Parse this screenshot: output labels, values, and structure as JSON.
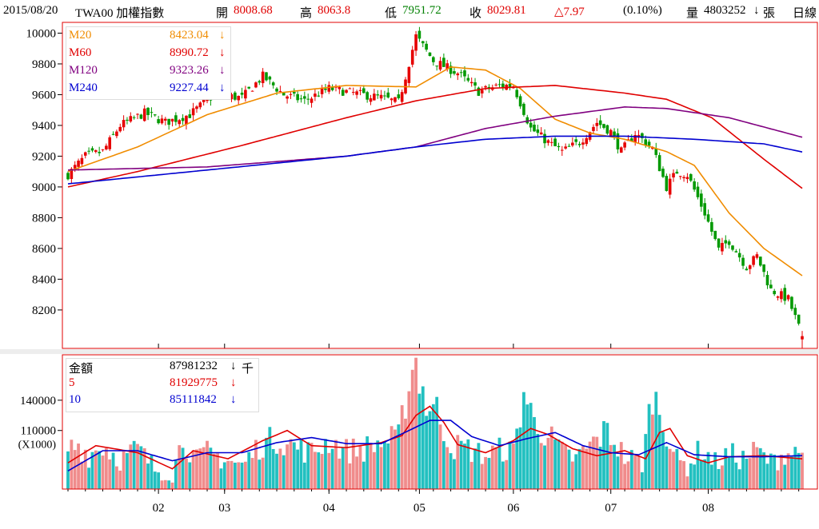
{
  "header": {
    "date": "2015/08/20",
    "symbol": "TWA00 加權指數",
    "open_label": "開",
    "open": "8008.68",
    "high_label": "高",
    "high": "8063.8",
    "low_label": "低",
    "low": "7951.72",
    "close_label": "收",
    "close": "8029.81",
    "change": "△7.97",
    "change_pct": "(0.10%)",
    "volume_label": "量",
    "volume": "4803252",
    "volume_arrow": "↓",
    "volume_unit": "張",
    "period": "日線"
  },
  "colors": {
    "up": "#e60000",
    "down": "#009900",
    "vol_up": "#f08c8c",
    "vol_down": "#22c0c0",
    "ma20": "#f08c00",
    "ma60": "#e00000",
    "ma120": "#800080",
    "ma240": "#0000d0",
    "frame": "#e00000"
  },
  "price_legend": [
    {
      "name": "M20",
      "value": "8423.04",
      "arrow": "↓",
      "color": "#f08c00"
    },
    {
      "name": "M60",
      "value": "8990.72",
      "arrow": "↓",
      "color": "#e00000"
    },
    {
      "name": "M120",
      "value": "9323.26",
      "arrow": "↓",
      "color": "#800080"
    },
    {
      "name": "M240",
      "value": "9227.44",
      "arrow": "↓",
      "color": "#0000d0"
    }
  ],
  "volume_legend": [
    {
      "name": "金額",
      "value": "87981232",
      "arrow": "↓",
      "suffix": "千",
      "color": "#000000"
    },
    {
      "name": "5",
      "value": "81929775",
      "arrow": "↓",
      "suffix": "",
      "color": "#e00000"
    },
    {
      "name": "10",
      "value": "85111842",
      "arrow": "↓",
      "suffix": "",
      "color": "#0000d0"
    }
  ],
  "chart_data": [
    {
      "type": "candlestick",
      "title": "TWA00 加權指數",
      "y_ticks": [
        10000,
        9800,
        9600,
        9400,
        9200,
        9000,
        8800,
        8600,
        8400,
        8200
      ],
      "ylim": [
        7950,
        10070
      ],
      "x_ticks": [
        "02",
        "03",
        "04",
        "05",
        "06",
        "07",
        "08"
      ],
      "x_tick_index": [
        26,
        45,
        75,
        101,
        128,
        156,
        184
      ],
      "keypoints_close": [
        [
          0,
          9080
        ],
        [
          5,
          9200
        ],
        [
          10,
          9230
        ],
        [
          15,
          9400
        ],
        [
          22,
          9480
        ],
        [
          28,
          9420
        ],
        [
          35,
          9470
        ],
        [
          42,
          9600
        ],
        [
          50,
          9580
        ],
        [
          56,
          9720
        ],
        [
          62,
          9600
        ],
        [
          68,
          9560
        ],
        [
          75,
          9640
        ],
        [
          82,
          9610
        ],
        [
          90,
          9580
        ],
        [
          95,
          9550
        ],
        [
          97,
          9720
        ],
        [
          100,
          9980
        ],
        [
          105,
          9820
        ],
        [
          112,
          9740
        ],
        [
          118,
          9620
        ],
        [
          124,
          9660
        ],
        [
          128,
          9660
        ],
        [
          133,
          9380
        ],
        [
          138,
          9290
        ],
        [
          142,
          9230
        ],
        [
          147,
          9290
        ],
        [
          152,
          9420
        ],
        [
          156,
          9360
        ],
        [
          159,
          9230
        ],
        [
          163,
          9350
        ],
        [
          168,
          9250
        ],
        [
          172,
          9000
        ],
        [
          175,
          9100
        ],
        [
          178,
          9080
        ],
        [
          183,
          8830
        ],
        [
          187,
          8590
        ],
        [
          190,
          8650
        ],
        [
          195,
          8480
        ],
        [
          198,
          8550
        ],
        [
          202,
          8330
        ],
        [
          207,
          8270
        ],
        [
          211,
          8030
        ]
      ],
      "series": [
        {
          "name": "M20",
          "values_keypoints": [
            [
              0,
              9100
            ],
            [
              20,
              9260
            ],
            [
              40,
              9470
            ],
            [
              60,
              9610
            ],
            [
              80,
              9660
            ],
            [
              100,
              9650
            ],
            [
              110,
              9780
            ],
            [
              120,
              9760
            ],
            [
              130,
              9640
            ],
            [
              140,
              9440
            ],
            [
              150,
              9350
            ],
            [
              160,
              9310
            ],
            [
              172,
              9230
            ],
            [
              180,
              9140
            ],
            [
              190,
              8830
            ],
            [
              200,
              8600
            ],
            [
              211,
              8423.04
            ]
          ]
        },
        {
          "name": "M60",
          "values_keypoints": [
            [
              0,
              9000
            ],
            [
              20,
              9100
            ],
            [
              50,
              9270
            ],
            [
              80,
              9450
            ],
            [
              100,
              9560
            ],
            [
              120,
              9640
            ],
            [
              140,
              9660
            ],
            [
              160,
              9610
            ],
            [
              172,
              9570
            ],
            [
              185,
              9450
            ],
            [
              200,
              9180
            ],
            [
              211,
              8990.72
            ]
          ]
        },
        {
          "name": "M120",
          "values_keypoints": [
            [
              0,
              9110
            ],
            [
              40,
              9130
            ],
            [
              80,
              9200
            ],
            [
              100,
              9260
            ],
            [
              120,
              9380
            ],
            [
              140,
              9460
            ],
            [
              160,
              9520
            ],
            [
              172,
              9510
            ],
            [
              190,
              9450
            ],
            [
              211,
              9323.26
            ]
          ]
        },
        {
          "name": "M240",
          "values_keypoints": [
            [
              0,
              9020
            ],
            [
              40,
              9110
            ],
            [
              80,
              9200
            ],
            [
              100,
              9260
            ],
            [
              120,
              9310
            ],
            [
              140,
              9330
            ],
            [
              160,
              9330
            ],
            [
              180,
              9310
            ],
            [
              200,
              9280
            ],
            [
              211,
              9227.44
            ]
          ]
        }
      ]
    },
    {
      "type": "bar",
      "title": "金額",
      "unit": "(X1000)",
      "y_ticks": [
        140000,
        110000
      ],
      "ylim": [
        52000,
        185000
      ],
      "x_ticks": [
        "02",
        "03",
        "04",
        "05",
        "06",
        "07",
        "08"
      ],
      "keypoints_volume": [
        [
          0,
          92000
        ],
        [
          3,
          96000
        ],
        [
          6,
          86000
        ],
        [
          10,
          95000
        ],
        [
          15,
          82000
        ],
        [
          20,
          92000
        ],
        [
          25,
          72000
        ],
        [
          30,
          68000
        ],
        [
          33,
          102000
        ],
        [
          37,
          80000
        ],
        [
          40,
          88000
        ],
        [
          45,
          82000
        ],
        [
          50,
          75000
        ],
        [
          55,
          95000
        ],
        [
          60,
          102000
        ],
        [
          65,
          95000
        ],
        [
          70,
          88000
        ],
        [
          75,
          100000
        ],
        [
          80,
          90000
        ],
        [
          85,
          92000
        ],
        [
          90,
          98000
        ],
        [
          95,
          102000
        ],
        [
          98,
          160000
        ],
        [
          100,
          180000
        ],
        [
          103,
          135000
        ],
        [
          106,
          130000
        ],
        [
          110,
          95000
        ],
        [
          115,
          92000
        ],
        [
          120,
          85000
        ],
        [
          125,
          92000
        ],
        [
          128,
          88000
        ],
        [
          131,
          148000
        ],
        [
          134,
          118000
        ],
        [
          138,
          105000
        ],
        [
          142,
          88000
        ],
        [
          146,
          82000
        ],
        [
          150,
          95000
        ],
        [
          155,
          110000
        ],
        [
          160,
          84000
        ],
        [
          165,
          78000
        ],
        [
          168,
          148000
        ],
        [
          171,
          120000
        ],
        [
          175,
          80000
        ],
        [
          178,
          75000
        ],
        [
          182,
          92000
        ],
        [
          186,
          78000
        ],
        [
          190,
          86000
        ],
        [
          194,
          82000
        ],
        [
          198,
          90000
        ],
        [
          202,
          78000
        ],
        [
          206,
          88000
        ],
        [
          211,
          88000
        ]
      ],
      "series": [
        {
          "name": "5",
          "values_keypoints": [
            [
              0,
              78000
            ],
            [
              8,
              95000
            ],
            [
              20,
              88000
            ],
            [
              30,
              72000
            ],
            [
              36,
              90000
            ],
            [
              46,
              82000
            ],
            [
              56,
              100000
            ],
            [
              63,
              110000
            ],
            [
              70,
              95000
            ],
            [
              80,
              93000
            ],
            [
              90,
              98000
            ],
            [
              96,
              105000
            ],
            [
              100,
              125000
            ],
            [
              104,
              134000
            ],
            [
              108,
              118000
            ],
            [
              112,
              96000
            ],
            [
              120,
              88000
            ],
            [
              128,
              100000
            ],
            [
              133,
              112000
            ],
            [
              138,
              106000
            ],
            [
              145,
              92000
            ],
            [
              152,
              85000
            ],
            [
              160,
              90000
            ],
            [
              166,
              82000
            ],
            [
              170,
              108000
            ],
            [
              173,
              112000
            ],
            [
              178,
              85000
            ],
            [
              184,
              78000
            ],
            [
              190,
              84000
            ],
            [
              200,
              85000
            ],
            [
              211,
              81929.775
            ]
          ]
        },
        {
          "name": "10",
          "values_keypoints": [
            [
              0,
              70000
            ],
            [
              10,
              90000
            ],
            [
              20,
              90000
            ],
            [
              30,
              80000
            ],
            [
              40,
              88000
            ],
            [
              50,
              88000
            ],
            [
              60,
              98000
            ],
            [
              70,
              103000
            ],
            [
              80,
              97000
            ],
            [
              90,
              97000
            ],
            [
              98,
              110000
            ],
            [
              104,
              120000
            ],
            [
              110,
              120000
            ],
            [
              116,
              104000
            ],
            [
              124,
              95000
            ],
            [
              132,
              102000
            ],
            [
              140,
              108000
            ],
            [
              148,
              95000
            ],
            [
              156,
              88000
            ],
            [
              164,
              86000
            ],
            [
              172,
              98000
            ],
            [
              180,
              86000
            ],
            [
              190,
              84000
            ],
            [
              200,
              84000
            ],
            [
              211,
              85111.842
            ]
          ]
        }
      ]
    }
  ]
}
